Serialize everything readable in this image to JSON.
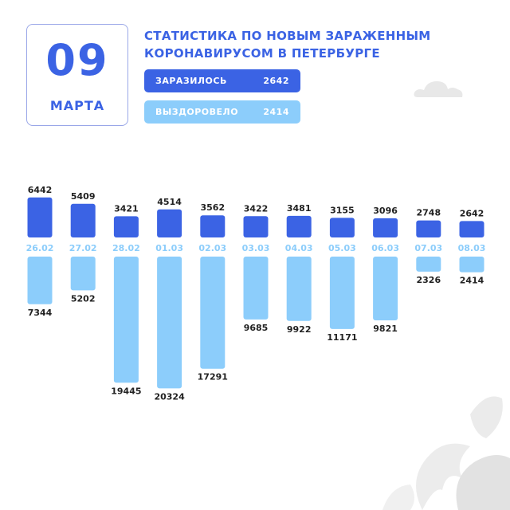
{
  "header": {
    "day": "09",
    "month": "МАРТА",
    "title_line1": "СТАТИСТИКА ПО НОВЫМ ЗАРАЖЕННЫМ",
    "title_line2": "КОРОНАВИРУСОМ В ПЕТЕРБУРГЕ"
  },
  "summary": {
    "infected_label": "ЗАРАЗИЛОСЬ",
    "infected_value": "2642",
    "recovered_label": "ВЫЗДОРОВЕЛО",
    "recovered_value": "2414"
  },
  "colors": {
    "infected": "#3b63e4",
    "recovered": "#8ccdfb",
    "text_dark": "#222222"
  },
  "chart_data": {
    "type": "bar",
    "categories": [
      "26.02",
      "27.02",
      "28.02",
      "01.03",
      "02.03",
      "03.03",
      "04.03",
      "05.03",
      "06.03",
      "07.03",
      "08.03"
    ],
    "series": [
      {
        "key": "infected",
        "values": [
          6442,
          5409,
          3421,
          4514,
          3562,
          3422,
          3481,
          3155,
          3096,
          2748,
          2642
        ]
      },
      {
        "key": "recovered",
        "values": [
          7344,
          5202,
          19445,
          20324,
          17291,
          9685,
          9922,
          11171,
          9821,
          2326,
          2414
        ]
      }
    ]
  }
}
